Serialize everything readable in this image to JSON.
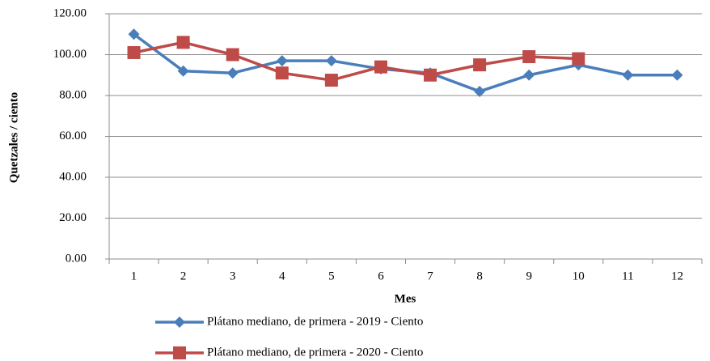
{
  "chart_data": {
    "type": "line",
    "x_label": "Mes",
    "y_label": "Quetzales / ciento",
    "categories": [
      "1",
      "2",
      "3",
      "4",
      "5",
      "6",
      "7",
      "8",
      "9",
      "10",
      "11",
      "12"
    ],
    "series": [
      {
        "name": "Plátano mediano, de primera - 2019 - Ciento",
        "color": "#4a7ebb",
        "marker": "diamond",
        "values": [
          110,
          92,
          91,
          97,
          97,
          93,
          91,
          82,
          90,
          95,
          90,
          90
        ]
      },
      {
        "name": "Plátano mediano, de primera - 2020 - Ciento",
        "color": "#be4b48",
        "marker": "square",
        "values": [
          101,
          106,
          100,
          91,
          87.5,
          94,
          90,
          95,
          99,
          98,
          null,
          null
        ]
      }
    ],
    "ylim": [
      0,
      120
    ],
    "yticks": [
      {
        "value": 0,
        "label": "0.00"
      },
      {
        "value": 20,
        "label": "20.00"
      },
      {
        "value": 40,
        "label": "40.00"
      },
      {
        "value": 60,
        "label": "60.00"
      },
      {
        "value": 80,
        "label": "80.00"
      },
      {
        "value": 100,
        "label": "100.00"
      },
      {
        "value": 120,
        "label": "120.00"
      }
    ],
    "grid": true,
    "legend": "bottom"
  }
}
